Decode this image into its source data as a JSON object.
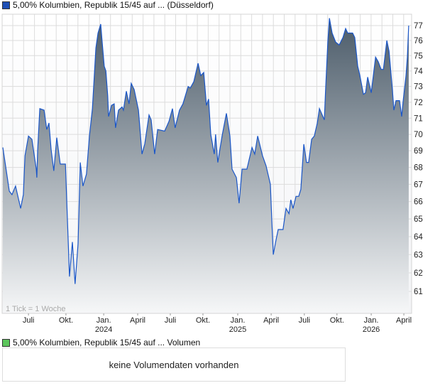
{
  "legend_price": {
    "label": "5,00% Kolumbien, Republik 15/45 auf ... (Düsseldorf)",
    "color": "#1f4fb5"
  },
  "legend_volume": {
    "label": "5,00% Kolumbien, Republik 15/45 auf ... Volumen",
    "color": "#5cc65c"
  },
  "volume_message": "keine Volumendaten vorhanden",
  "chart_data": {
    "type": "area",
    "title": "5,00% Kolumbien, Republik 15/45 auf ... (Düsseldorf)",
    "xlabel": "",
    "ylabel": "",
    "yscale": "log",
    "ylim": [
      60,
      77.8
    ],
    "yticks": [
      61,
      62,
      63,
      64,
      65,
      66,
      67,
      68,
      69,
      70,
      71,
      72,
      73,
      74,
      75,
      76,
      77
    ],
    "x_unit": "weeks",
    "note": "1 Tick = 1 Woche",
    "line_color": "#1a56c8",
    "fill_top_color": "#4b5b69",
    "fill_bottom_color": "#f6f7f8",
    "xticks": [
      {
        "week": 9.5,
        "label": "Juli",
        "year": ""
      },
      {
        "week": 23.4,
        "label": "Okt.",
        "year": ""
      },
      {
        "week": 37.4,
        "label": "Jan.",
        "year": "2024"
      },
      {
        "week": 50,
        "label": "April",
        "year": ""
      },
      {
        "week": 62.1,
        "label": "Juli",
        "year": ""
      },
      {
        "week": 74.2,
        "label": "Okt.",
        "year": ""
      },
      {
        "week": 87.1,
        "label": "Jan.",
        "year": "2025"
      },
      {
        "week": 99.5,
        "label": "April",
        "year": ""
      },
      {
        "week": 111.8,
        "label": "Juli",
        "year": ""
      },
      {
        "week": 123.9,
        "label": "Okt.",
        "year": ""
      },
      {
        "week": 136.6,
        "label": "Jan.",
        "year": "2026"
      },
      {
        "week": 148.7,
        "label": "April",
        "year": ""
      }
    ],
    "points": [
      [
        0,
        69.2
      ],
      [
        1.1,
        68.0
      ],
      [
        2.4,
        66.6
      ],
      [
        3.4,
        66.4
      ],
      [
        4.7,
        66.9
      ],
      [
        6.6,
        65.6
      ],
      [
        7.6,
        66.4
      ],
      [
        8.2,
        68.7
      ],
      [
        9.5,
        69.9
      ],
      [
        10.8,
        69.7
      ],
      [
        12.4,
        67.9
      ],
      [
        12.6,
        67.4
      ],
      [
        12.9,
        69.0
      ],
      [
        13.7,
        71.6
      ],
      [
        15.3,
        71.5
      ],
      [
        16.3,
        70.3
      ],
      [
        17.1,
        70.7
      ],
      [
        17.9,
        69.1
      ],
      [
        18.9,
        67.8
      ],
      [
        20,
        69.8
      ],
      [
        21.3,
        68.2
      ],
      [
        23.2,
        68.2
      ],
      [
        23.9,
        65.2
      ],
      [
        24.7,
        61.8
      ],
      [
        25.8,
        63.7
      ],
      [
        26.8,
        61.4
      ],
      [
        27.9,
        63.6
      ],
      [
        28.7,
        68.3
      ],
      [
        29.7,
        66.9
      ],
      [
        31,
        67.6
      ],
      [
        32.1,
        69.9
      ],
      [
        33.2,
        71.6
      ],
      [
        34.5,
        75.5
      ],
      [
        35.3,
        76.5
      ],
      [
        36.3,
        77.1
      ],
      [
        36.8,
        76.0
      ],
      [
        37.6,
        74.3
      ],
      [
        38.2,
        74.0
      ],
      [
        38.9,
        72.4
      ],
      [
        39.2,
        71.1
      ],
      [
        40.3,
        71.8
      ],
      [
        41.3,
        71.9
      ],
      [
        41.8,
        70.4
      ],
      [
        42.9,
        71.5
      ],
      [
        44.2,
        71.7
      ],
      [
        44.7,
        71.5
      ],
      [
        45.8,
        72.7
      ],
      [
        46.8,
        71.9
      ],
      [
        47.6,
        73.2
      ],
      [
        48.7,
        72.8
      ],
      [
        50.3,
        71.5
      ],
      [
        51.6,
        68.8
      ],
      [
        52.6,
        69.4
      ],
      [
        54.2,
        71.2
      ],
      [
        55,
        70.9
      ],
      [
        56.3,
        68.8
      ],
      [
        57.4,
        70.3
      ],
      [
        60,
        70.2
      ],
      [
        61.6,
        70.8
      ],
      [
        62.9,
        71.6
      ],
      [
        63.9,
        70.4
      ],
      [
        65.5,
        71.5
      ],
      [
        66.8,
        71.9
      ],
      [
        68.7,
        73.0
      ],
      [
        69.5,
        72.9
      ],
      [
        70.8,
        73.3
      ],
      [
        72.4,
        74.5
      ],
      [
        73.4,
        73.7
      ],
      [
        74.5,
        73.9
      ],
      [
        75.5,
        71.8
      ],
      [
        76.3,
        72.2
      ],
      [
        77.1,
        70.0
      ],
      [
        78.4,
        68.8
      ],
      [
        78.9,
        70.0
      ],
      [
        79.7,
        68.3
      ],
      [
        81.3,
        69.9
      ],
      [
        82.9,
        71.3
      ],
      [
        84.2,
        69.9
      ],
      [
        85,
        67.9
      ],
      [
        86.6,
        67.4
      ],
      [
        87.6,
        65.9
      ],
      [
        88.7,
        67.9
      ],
      [
        90.5,
        67.9
      ],
      [
        92.4,
        69.2
      ],
      [
        93.4,
        68.8
      ],
      [
        94.5,
        69.9
      ],
      [
        96.3,
        68.7
      ],
      [
        97.6,
        68.1
      ],
      [
        99.2,
        67.0
      ],
      [
        99.7,
        65.0
      ],
      [
        100.3,
        63.0
      ],
      [
        101.3,
        63.8
      ],
      [
        102.1,
        64.4
      ],
      [
        103.9,
        64.4
      ],
      [
        105,
        65.6
      ],
      [
        106.1,
        65.3
      ],
      [
        106.8,
        66.1
      ],
      [
        107.6,
        65.6
      ],
      [
        108.7,
        66.3
      ],
      [
        109.7,
        66.3
      ],
      [
        110.5,
        66.7
      ],
      [
        111.6,
        69.4
      ],
      [
        112.6,
        68.3
      ],
      [
        113.4,
        68.3
      ],
      [
        114.5,
        69.7
      ],
      [
        115.5,
        69.9
      ],
      [
        116.6,
        70.7
      ],
      [
        117.4,
        71.6
      ],
      [
        119.2,
        70.9
      ],
      [
        119.7,
        72.9
      ],
      [
        120.5,
        75.9
      ],
      [
        121.1,
        77.5
      ],
      [
        122.1,
        76.5
      ],
      [
        123.4,
        75.9
      ],
      [
        124.7,
        75.7
      ],
      [
        126.1,
        76.2
      ],
      [
        127.1,
        76.8
      ],
      [
        127.9,
        76.5
      ],
      [
        129.7,
        76.5
      ],
      [
        130.5,
        76.2
      ],
      [
        131.6,
        74.3
      ],
      [
        132.4,
        73.7
      ],
      [
        133.7,
        72.5
      ],
      [
        134.5,
        72.6
      ],
      [
        135.3,
        73.6
      ],
      [
        136.6,
        72.6
      ],
      [
        138.2,
        74.9
      ],
      [
        139.2,
        74.6
      ],
      [
        140.3,
        74.1
      ],
      [
        141.1,
        74.1
      ],
      [
        142.4,
        76.0
      ],
      [
        143.2,
        75.3
      ],
      [
        144.5,
        72.7
      ],
      [
        145,
        71.5
      ],
      [
        145.8,
        72.1
      ],
      [
        147.1,
        72.1
      ],
      [
        147.9,
        71.1
      ],
      [
        148.4,
        72.0
      ],
      [
        149.5,
        73.7
      ],
      [
        150,
        74.9
      ],
      [
        150.5,
        77.0
      ]
    ]
  }
}
